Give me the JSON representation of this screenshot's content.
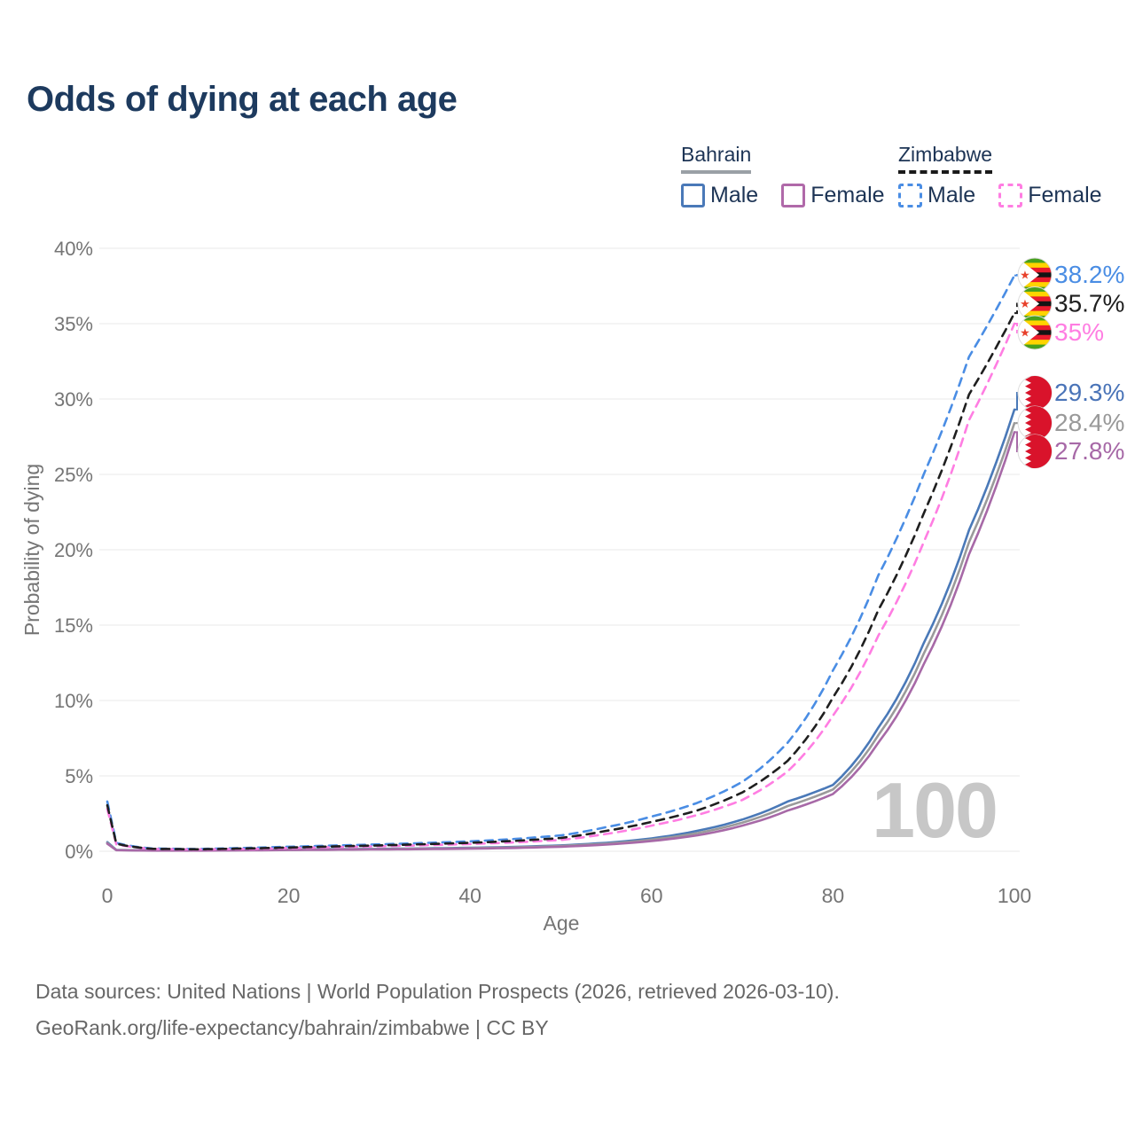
{
  "title": "Odds of dying at each age",
  "legend": {
    "groups": [
      {
        "label": "Bahrain",
        "line_style": "solid",
        "underline_color": "#9aa0a6",
        "items": [
          {
            "label": "Male",
            "color": "#4a79b8"
          },
          {
            "label": "Female",
            "color": "#b069a9"
          }
        ]
      },
      {
        "label": "Zimbabwe",
        "line_style": "dashed",
        "underline_color": "#1a1a1a",
        "items": [
          {
            "label": "Male",
            "color": "#4a8de4"
          },
          {
            "label": "Female",
            "color": "#ff7de2"
          }
        ]
      }
    ]
  },
  "chart_data": {
    "type": "line",
    "title": "Odds of dying at each age",
    "xlabel": "Age",
    "ylabel": "Probability of dying",
    "xlim": [
      0,
      100
    ],
    "ylim": [
      0,
      40
    ],
    "grid": "horizontal",
    "watermark": "100",
    "x_ticks": [
      {
        "value": 0,
        "label": "0"
      },
      {
        "value": 20,
        "label": "20"
      },
      {
        "value": 40,
        "label": "40"
      },
      {
        "value": 60,
        "label": "60"
      },
      {
        "value": 80,
        "label": "80"
      },
      {
        "value": 100,
        "label": "100"
      }
    ],
    "y_ticks": [
      {
        "value": 0,
        "label": "0%"
      },
      {
        "value": 5,
        "label": "5%"
      },
      {
        "value": 10,
        "label": "10%"
      },
      {
        "value": 15,
        "label": "15%"
      },
      {
        "value": 20,
        "label": "20%"
      },
      {
        "value": 25,
        "label": "25%"
      },
      {
        "value": 30,
        "label": "30%"
      },
      {
        "value": 35,
        "label": "35%"
      },
      {
        "value": 40,
        "label": "40%"
      }
    ],
    "ages": [
      0,
      1,
      5,
      10,
      15,
      20,
      25,
      30,
      35,
      40,
      45,
      50,
      55,
      60,
      65,
      70,
      75,
      80,
      85,
      90,
      95,
      100
    ],
    "series": [
      {
        "name": "Zimbabwe Male",
        "country": "Zimbabwe",
        "sex": "Male",
        "color": "#4a8de4",
        "label_color": "#4a8de4",
        "dashed": true,
        "flag_icon": "zimbabwe-flag-icon",
        "end_label": "38.2%",
        "end_value": 38.2,
        "values": [
          3.3,
          0.55,
          0.18,
          0.15,
          0.22,
          0.3,
          0.38,
          0.46,
          0.55,
          0.66,
          0.82,
          1.05,
          1.6,
          2.3,
          3.2,
          4.6,
          7.2,
          12.0,
          18.3,
          25.0,
          32.8,
          38.2
        ]
      },
      {
        "name": "Zimbabwe Both sexes",
        "country": "Zimbabwe",
        "sex": "Both",
        "color": "#1f1f1f",
        "label_color": "#1f1f1f",
        "dashed": true,
        "flag_icon": "zimbabwe-flag-icon",
        "end_label": "35.7%",
        "end_value": 35.7,
        "values": [
          3.05,
          0.5,
          0.16,
          0.13,
          0.18,
          0.25,
          0.32,
          0.39,
          0.47,
          0.56,
          0.69,
          0.88,
          1.35,
          1.95,
          2.7,
          3.9,
          6.0,
          10.2,
          16.0,
          22.4,
          30.3,
          35.7
        ]
      },
      {
        "name": "Zimbabwe Female",
        "country": "Zimbabwe",
        "sex": "Female",
        "color": "#ff7de2",
        "label_color": "#ff7de2",
        "dashed": true,
        "flag_icon": "zimbabwe-flag-icon",
        "end_label": "35%",
        "end_value": 35.0,
        "values": [
          2.8,
          0.46,
          0.15,
          0.12,
          0.15,
          0.21,
          0.27,
          0.33,
          0.4,
          0.48,
          0.59,
          0.75,
          1.15,
          1.7,
          2.4,
          3.4,
          5.3,
          9.0,
          14.3,
          20.5,
          28.6,
          35.0
        ]
      },
      {
        "name": "Bahrain Male",
        "country": "Bahrain",
        "sex": "Male",
        "color": "#4a79b8",
        "label_color": "#4a74b8",
        "dashed": false,
        "flag_icon": "bahrain-flag-icon",
        "end_label": "29.3%",
        "end_value": 29.3,
        "values": [
          0.6,
          0.09,
          0.05,
          0.05,
          0.08,
          0.12,
          0.14,
          0.16,
          0.19,
          0.23,
          0.29,
          0.39,
          0.56,
          0.85,
          1.35,
          2.1,
          3.3,
          4.4,
          8.2,
          13.8,
          21.3,
          29.3
        ]
      },
      {
        "name": "Bahrain Both sexes",
        "country": "Bahrain",
        "sex": "Both",
        "color": "#9a9a9a",
        "label_color": "#999999",
        "dashed": false,
        "flag_icon": "bahrain-flag-icon",
        "end_label": "28.4%",
        "end_value": 28.4,
        "values": [
          0.55,
          0.08,
          0.045,
          0.045,
          0.07,
          0.1,
          0.12,
          0.14,
          0.17,
          0.2,
          0.26,
          0.35,
          0.5,
          0.77,
          1.2,
          1.9,
          3.0,
          4.1,
          7.7,
          13.1,
          20.5,
          28.4
        ]
      },
      {
        "name": "Bahrain Female",
        "country": "Bahrain",
        "sex": "Female",
        "color": "#a769a7",
        "label_color": "#a769a7",
        "dashed": false,
        "flag_icon": "bahrain-flag-icon",
        "end_label": "27.8%",
        "end_value": 27.8,
        "values": [
          0.5,
          0.07,
          0.04,
          0.04,
          0.06,
          0.08,
          0.1,
          0.12,
          0.14,
          0.17,
          0.22,
          0.3,
          0.44,
          0.68,
          1.05,
          1.7,
          2.7,
          3.8,
          7.2,
          12.4,
          19.7,
          27.8
        ]
      }
    ]
  },
  "footer": {
    "line1": "Data sources: United Nations | World Population Prospects (2026, retrieved 2026-03-10).",
    "line2": "GeoRank.org/life-expectancy/bahrain/zimbabwe | CC BY"
  }
}
